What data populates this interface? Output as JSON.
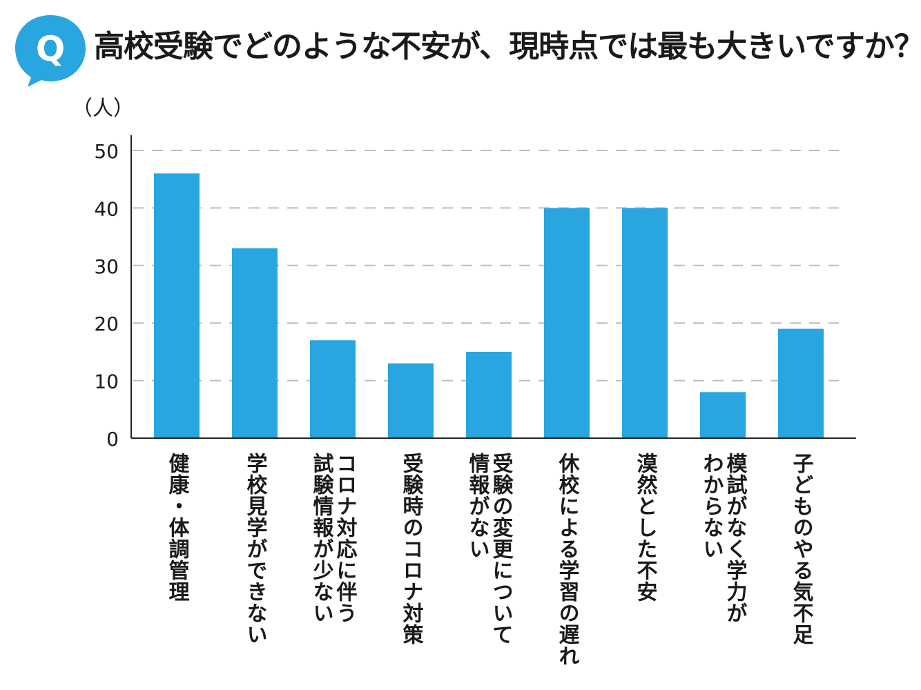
{
  "question": {
    "badge": "Q",
    "title": "高校受験でどのような不安が、現時点では最も大きいですか？"
  },
  "colors": {
    "accent": "#29a5df",
    "bar": "#29a5df",
    "grid": "#bdbdbd",
    "axis": "#222222"
  },
  "chart_data": {
    "type": "bar",
    "title": "高校受験でどのような不安が、現時点では最も大きいですか？",
    "ylabel": "（人）",
    "xlabel": "",
    "ylim": [
      0,
      50
    ],
    "yticks": [
      0,
      10,
      20,
      30,
      40,
      50
    ],
    "grid": true,
    "categories": [
      [
        "健康・体調管理"
      ],
      [
        "学校見学ができない"
      ],
      [
        "コロナ対応に伴う",
        "試験情報が少ない"
      ],
      [
        "受験時のコロナ対策"
      ],
      [
        "受験の変更について",
        "情報がない"
      ],
      [
        "休校による学習の遅れ"
      ],
      [
        "漠然とした不安"
      ],
      [
        "模試がなく学力が",
        "わからない"
      ],
      [
        "子どものやる気不足"
      ]
    ],
    "values": [
      46,
      33,
      17,
      13,
      15,
      40,
      40,
      8,
      19
    ]
  }
}
